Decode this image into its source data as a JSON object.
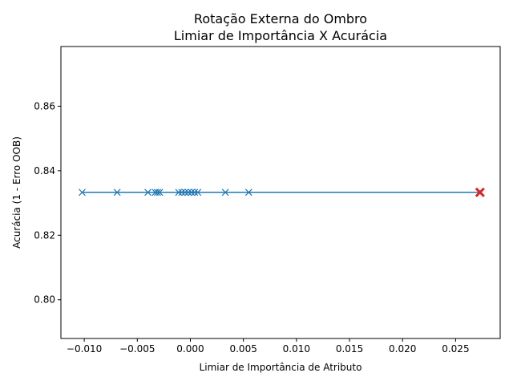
{
  "chart_data": {
    "type": "line",
    "title": "Rotação Externa do Ombro",
    "subtitle": "Limiar de Importância X Acurácia",
    "xlabel": "Limiar de Importância de Atributo",
    "ylabel": "Acurácia (1 - Erro OOB)",
    "xlim": [
      -0.0122,
      0.0292
    ],
    "ylim": [
      0.788,
      0.8785
    ],
    "xticks": [
      -0.01,
      -0.005,
      0.0,
      0.005,
      0.01,
      0.015,
      0.02,
      0.025
    ],
    "xtick_labels": [
      "−0.010",
      "−0.005",
      "0.000",
      "0.005",
      "0.010",
      "0.015",
      "0.020",
      "0.025"
    ],
    "yticks": [
      0.8,
      0.82,
      0.84,
      0.86
    ],
    "ytick_labels": [
      "0.80",
      "0.82",
      "0.84",
      "0.86"
    ],
    "grid": false,
    "series": [
      {
        "marker": "x",
        "color": "#1f77b4",
        "x": [
          -0.0102,
          -0.0069,
          -0.004,
          -0.0033,
          -0.0031,
          -0.0029,
          -0.0011,
          -0.0008,
          -0.0005,
          -0.0002,
          0.0001,
          0.0004,
          0.0007,
          0.0033,
          0.0055,
          0.0273
        ],
        "y": [
          0.8333,
          0.8333,
          0.8333,
          0.8333,
          0.8333,
          0.8333,
          0.8333,
          0.8333,
          0.8333,
          0.8333,
          0.8333,
          0.8333,
          0.8333,
          0.8333,
          0.8333,
          0.8333
        ]
      }
    ],
    "highlight": {
      "x": 0.0273,
      "y": 0.8333,
      "marker": "x",
      "color": "#d62728"
    }
  }
}
